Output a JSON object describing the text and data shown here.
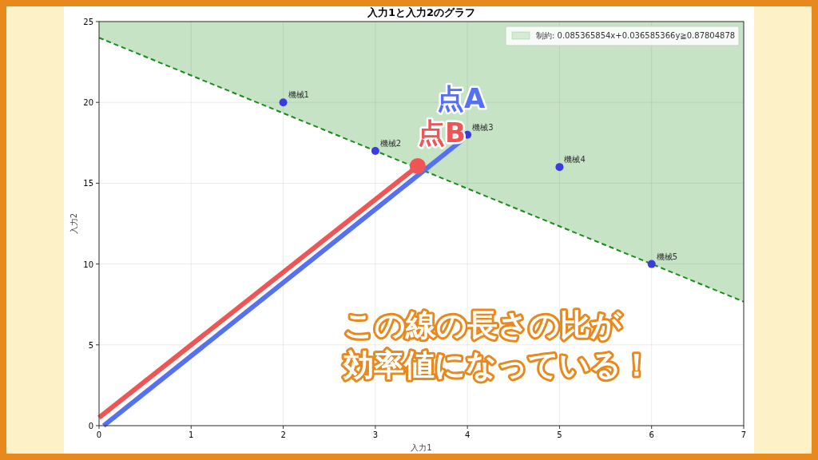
{
  "chart_data": {
    "type": "scatter",
    "title": "入力1と入力2のグラフ",
    "xlabel": "入力1",
    "ylabel": "入力2",
    "xlim": [
      0,
      7
    ],
    "ylim": [
      0,
      25
    ],
    "xticks": [
      0,
      1,
      2,
      3,
      4,
      5,
      6,
      7
    ],
    "yticks": [
      0,
      5,
      10,
      15,
      20,
      25
    ],
    "grid": true,
    "legend": "top right",
    "series": [
      {
        "type": "line",
        "name": "制約: 0.085365854x+0.036585366y≧0.87804878",
        "color": "#1a8a1a",
        "line_style": "dashed",
        "x": [
          0,
          7
        ],
        "values": [
          24,
          7.67
        ],
        "lower": [
          24,
          7.67
        ],
        "upper": [
          25,
          25
        ]
      },
      {
        "type": "line",
        "color": "#5570f0",
        "x": [
          0.05,
          3.95
        ],
        "values": [
          0,
          17.7
        ]
      },
      {
        "type": "line",
        "color": "#f05555",
        "x": [
          0,
          3.46
        ],
        "values": [
          0.5,
          16.06
        ]
      },
      {
        "color": "#3b3be0",
        "x": [
          2,
          3,
          4,
          5,
          6
        ],
        "values": [
          20,
          17,
          18,
          16,
          10
        ]
      },
      {
        "color": "#f05555",
        "x": [
          3.46
        ],
        "values": [
          16.06
        ]
      }
    ],
    "annotations": [
      {
        "text": "機械1",
        "x": 2,
        "y": 20
      },
      {
        "text": "機械2",
        "x": 3,
        "y": 17
      },
      {
        "text": "機械3",
        "x": 4,
        "y": 18
      },
      {
        "text": "機械4",
        "x": 5,
        "y": 16
      },
      {
        "text": "機械5",
        "x": 6,
        "y": 10
      },
      {
        "text": "点A",
        "x": 4,
        "y": 18
      },
      {
        "text": "点B",
        "x": 3.46,
        "y": 16.06
      },
      "この線の長さの比が",
      "効率値になっている！"
    ]
  }
}
